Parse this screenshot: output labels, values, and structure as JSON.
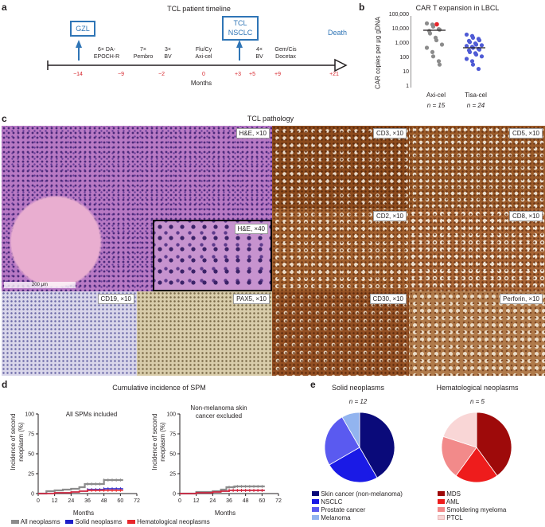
{
  "panels": {
    "a": "a",
    "b": "b",
    "c": "c",
    "d": "d",
    "e": "e"
  },
  "timeline": {
    "title": "TCL patient timeline",
    "box_gzl": "GZL",
    "box_tcl_l1": "TCL",
    "box_tcl_l2": "NSCLC",
    "death": "Death",
    "axis_label": "Months",
    "treatments": [
      {
        "l1": "6× DA-",
        "l2": "EPOCH-R"
      },
      {
        "l1": "7×",
        "l2": "Pembro"
      },
      {
        "l1": "3×",
        "l2": "BV"
      },
      {
        "l1": "Flu/Cy",
        "l2": "Axi-cel"
      },
      {
        "l1": "4×",
        "l2": "BV"
      },
      {
        "l1": "Gem/Cis",
        "l2": "Docetax"
      }
    ],
    "ticks": [
      "−14",
      "−9",
      "−2",
      "0",
      "+3",
      "+5",
      "+9",
      "+21"
    ],
    "tick_color": "#d7282f",
    "box_color": "#2f75b6"
  },
  "expansion": {
    "title": "CAR T expansion in LBCL",
    "ylabel": "CAR copies per μg gDNA",
    "yticks": [
      "100,000",
      "10,000",
      "1,000",
      "100",
      "10",
      "1"
    ],
    "groups": [
      {
        "name": "Axi-cel",
        "n": "n = 15",
        "color": "#8c8c8c"
      },
      {
        "name": "Tisa-cel",
        "n": "n = 24",
        "color": "#4f5bd5"
      }
    ]
  },
  "chart_data": [
    {
      "type": "scatter",
      "title": "CAR T expansion in LBCL",
      "ylabel": "CAR copies per μg gDNA",
      "yscale": "log",
      "ylim": [
        1,
        100000
      ],
      "categories": [
        "Axi-cel",
        "Tisa-cel"
      ],
      "series": [
        {
          "name": "Axi-cel",
          "median": 10000,
          "values": [
            30000,
            25000,
            18000,
            12000,
            11000,
            9000,
            6000,
            3000,
            2000,
            1000,
            600,
            300,
            150,
            70,
            40
          ],
          "highlight_value": 26000
        },
        {
          "name": "Tisa-cel",
          "median": 600,
          "values": [
            5000,
            4000,
            3000,
            2500,
            2000,
            1800,
            1500,
            1200,
            1000,
            900,
            800,
            700,
            600,
            500,
            450,
            400,
            300,
            250,
            200,
            150,
            100,
            70,
            40,
            20
          ]
        }
      ]
    },
    {
      "type": "line",
      "title": "All SPMs included",
      "xlabel": "Months",
      "ylabel": "Incidence of second neoplasm (%)",
      "xlim": [
        0,
        72
      ],
      "ylim": [
        0,
        100
      ],
      "xticks": [
        0,
        12,
        24,
        36,
        48,
        60,
        72
      ],
      "yticks": [
        0,
        25,
        50,
        75,
        100
      ],
      "series": [
        {
          "name": "All neoplasms",
          "x": [
            0,
            6,
            12,
            18,
            24,
            30,
            34,
            40,
            48,
            55,
            62
          ],
          "y": [
            0,
            3,
            4,
            5,
            6,
            8,
            12,
            12,
            17,
            17,
            17
          ]
        },
        {
          "name": "Solid neoplasms",
          "x": [
            0,
            12,
            24,
            30,
            36,
            48,
            62
          ],
          "y": [
            0,
            1,
            2,
            3,
            5,
            6,
            6
          ]
        },
        {
          "name": "Hematological neoplasms",
          "x": [
            0,
            12,
            24,
            30,
            36,
            48,
            62
          ],
          "y": [
            0,
            1,
            2,
            3,
            4,
            4,
            4
          ]
        }
      ]
    },
    {
      "type": "line",
      "title": "Non-melanoma skin cancer excluded",
      "xlabel": "Months",
      "ylabel": "Incidence of second neoplasm (%)",
      "xlim": [
        0,
        72
      ],
      "ylim": [
        0,
        100
      ],
      "xticks": [
        0,
        12,
        24,
        36,
        48,
        60,
        72
      ],
      "yticks": [
        0,
        25,
        50,
        75,
        100
      ],
      "series": [
        {
          "name": "All neoplasms",
          "x": [
            0,
            12,
            24,
            30,
            34,
            40,
            48,
            62
          ],
          "y": [
            0,
            2,
            3,
            5,
            8,
            9,
            9,
            9
          ]
        },
        {
          "name": "Solid neoplasms",
          "x": [
            0,
            12,
            24,
            30,
            36,
            48,
            62
          ],
          "y": [
            0,
            1,
            2,
            3,
            4,
            4,
            4
          ]
        },
        {
          "name": "Hematological neoplasms",
          "x": [
            0,
            12,
            24,
            30,
            36,
            48,
            62
          ],
          "y": [
            0,
            1,
            2,
            3,
            4,
            4,
            4
          ]
        }
      ]
    },
    {
      "type": "pie",
      "title": "Solid neoplasms",
      "subtitle": "n = 12",
      "categories": [
        "Skin cancer (non-melanoma)",
        "NSCLC",
        "Prostate cancer",
        "Melanoma"
      ],
      "values": [
        5,
        3,
        3,
        1
      ]
    },
    {
      "type": "pie",
      "title": "Hematological neoplasms",
      "subtitle": "n = 5",
      "categories": [
        "MDS",
        "AML",
        "Smoldering myeloma",
        "PTCL"
      ],
      "values": [
        2,
        1,
        1,
        1
      ]
    }
  ],
  "pathology": {
    "title": "TCL pathology",
    "scale": "200 μm",
    "labels": {
      "he10": "H&E, ×10",
      "he40": "H&E, ×40",
      "cd3": "CD3, ×10",
      "cd5": "CD5, ×10",
      "cd2": "CD2, ×10",
      "cd8": "CD8, ×10",
      "cd19": "CD19, ×10",
      "pax5": "PAX5, ×10",
      "cd30": "CD30, ×10",
      "perforin": "Perforin, ×10"
    }
  },
  "spm": {
    "title": "Cumulative incidence of SPM",
    "left_title": "All SPMs included",
    "right_title_l1": "Non-melanoma skin",
    "right_title_l2": "cancer excluded",
    "ylabel_l1": "Incidence of second",
    "ylabel_l2": "neoplasm (%)",
    "xlabel": "Months",
    "legend": [
      "All neoplasms",
      "Solid neoplasms",
      "Hematological neoplasms"
    ],
    "colors": [
      "#8c8c8c",
      "#1f1fc8",
      "#e8262b"
    ]
  },
  "pies": {
    "solid_title": "Solid neoplasms",
    "solid_n": "n = 12",
    "heme_title": "Hematological neoplasms",
    "heme_n": "n = 5",
    "solid_legend": [
      "Skin cancer (non-melanoma)",
      "NSCLC",
      "Prostate cancer",
      "Melanoma"
    ],
    "solid_colors": [
      "#0a0a7a",
      "#1a1ae6",
      "#5a5af0",
      "#92b4ef"
    ],
    "heme_legend": [
      "MDS",
      "AML",
      "Smoldering myeloma",
      "PTCL"
    ],
    "heme_colors": [
      "#9e0a0a",
      "#ee1c1c",
      "#f28a8a",
      "#f9d6d6"
    ]
  }
}
